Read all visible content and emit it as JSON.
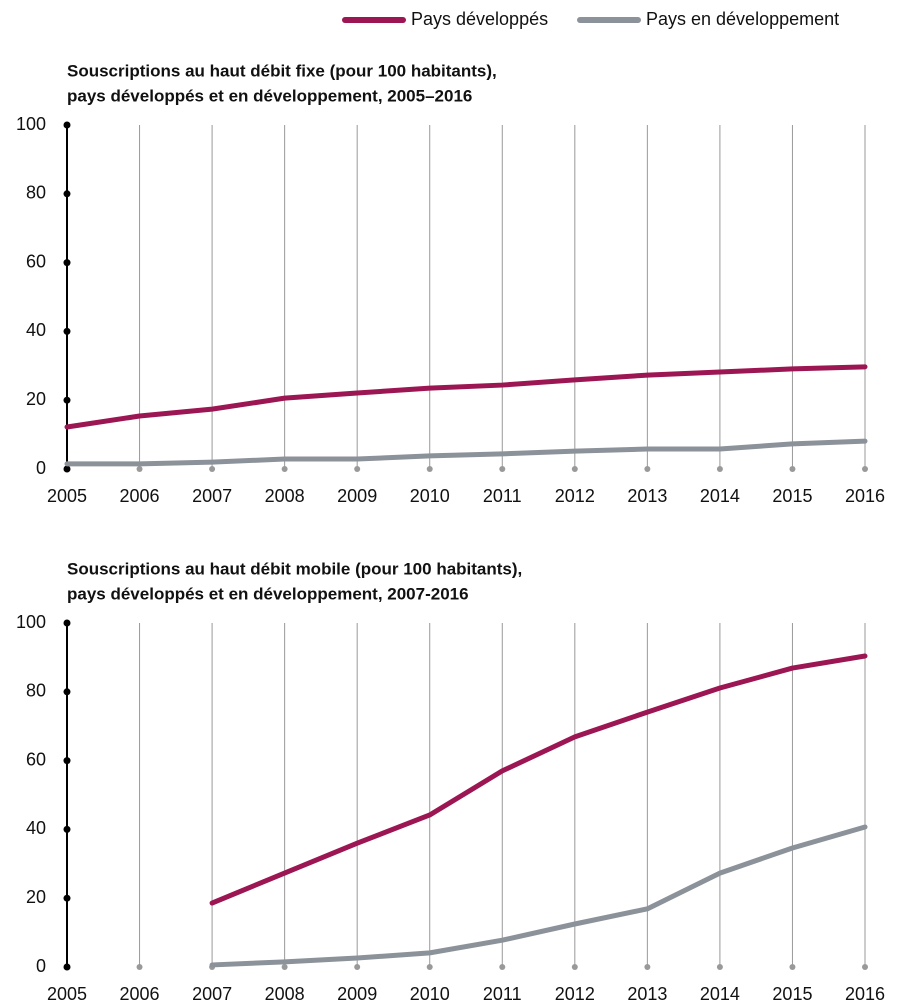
{
  "chart_data": [
    {
      "type": "line",
      "title": [
        "Souscriptions au haut débit fixe (pour 100 habitants),",
        "pays développés et en développement, 2005–2016"
      ],
      "categories": [
        "2005",
        "2006",
        "2007",
        "2008",
        "2009",
        "2010",
        "2011",
        "2012",
        "2013",
        "2014",
        "2015",
        "2016"
      ],
      "series": [
        {
          "name": "Pays développés",
          "color": "#9b1652",
          "values": [
            12.2,
            15.4,
            17.4,
            20.6,
            22.1,
            23.5,
            24.4,
            25.9,
            27.3,
            28.2,
            29.1,
            29.7
          ]
        },
        {
          "name": "Pays en développement",
          "color": "#8c9299",
          "values": [
            1.5,
            1.5,
            2.0,
            2.9,
            2.9,
            3.8,
            4.4,
            5.2,
            5.8,
            5.8,
            7.3,
            8.1
          ]
        }
      ],
      "ylim": [
        0,
        100
      ],
      "yticks": [
        0,
        20,
        40,
        60,
        80,
        100
      ],
      "grid": true,
      "legend": "top"
    },
    {
      "type": "line",
      "title": [
        "Souscriptions au haut débit mobile (pour 100 habitants),",
        "pays développés et en développement, 2007-2016"
      ],
      "categories": [
        "2005",
        "2006",
        "2007",
        "2008",
        "2009",
        "2010",
        "2011",
        "2012",
        "2013",
        "2014",
        "2015",
        "2016"
      ],
      "series": [
        {
          "color": "#9b1652",
          "values": [
            null,
            null,
            18.6,
            27.3,
            36.0,
            44.2,
            57.0,
            66.9,
            74.1,
            81.1,
            86.9,
            90.4
          ]
        },
        {
          "color": "#8c9299",
          "values": [
            null,
            null,
            0.6,
            1.5,
            2.6,
            4.1,
            7.8,
            12.5,
            16.9,
            27.3,
            34.6,
            40.7
          ]
        }
      ],
      "ylim": [
        0,
        100
      ],
      "yticks": [
        0,
        20,
        40,
        60,
        80,
        100
      ],
      "grid": true
    }
  ]
}
